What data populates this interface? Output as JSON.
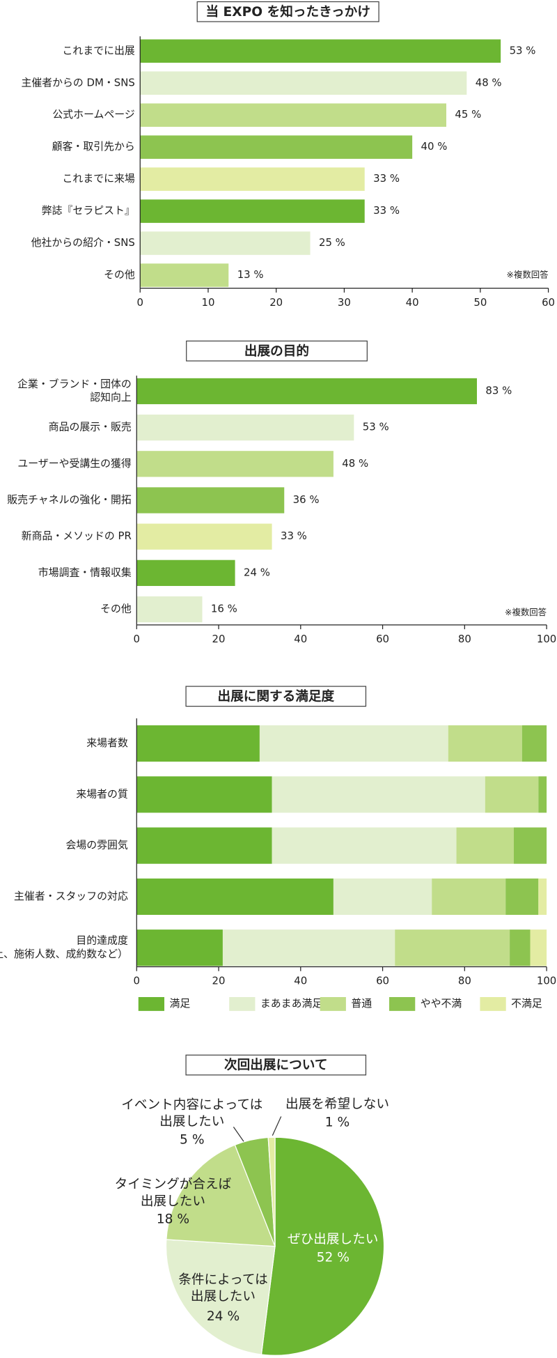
{
  "chart_data": [
    {
      "type": "bar",
      "orientation": "horizontal",
      "title": "当 EXPO を知ったきっかけ",
      "categories": [
        "これまでに出展",
        "主催者からの DM・SNS",
        "公式ホームページ",
        "顧客・取引先から",
        "これまでに来場",
        "弊誌『セラピスト』",
        "他社からの紹介・SNS",
        "その他"
      ],
      "values": [
        53,
        48,
        45,
        40,
        33,
        33,
        25,
        13
      ],
      "value_labels": [
        "53 %",
        "48 %",
        "45 %",
        "40 %",
        "33 %",
        "33 %",
        "25 %",
        "13 %"
      ],
      "colors": [
        "#6cb632",
        "#e2efcf",
        "#c1dd8a",
        "#8dc450",
        "#e3eca3",
        "#6cb632",
        "#e2efcf",
        "#c1dd8a"
      ],
      "note": "※複数回答",
      "xlim": [
        0,
        60
      ],
      "xticks": [
        0,
        10,
        20,
        30,
        40,
        50,
        60
      ]
    },
    {
      "type": "bar",
      "orientation": "horizontal",
      "title": "出展の目的",
      "categories": [
        "企業・ブランド・団体の\n認知向上",
        "商品の展示・販売",
        "ユーザーや受講生の獲得",
        "販売チャネルの強化・開拓",
        "新商品・メソッドの PR",
        "市場調査・情報収集",
        "その他"
      ],
      "values": [
        83,
        53,
        48,
        36,
        33,
        24,
        16
      ],
      "value_labels": [
        "83 %",
        "53 %",
        "48 %",
        "36 %",
        "33 %",
        "24 %",
        "16 %"
      ],
      "colors": [
        "#6cb632",
        "#e2efcf",
        "#c1dd8a",
        "#8dc450",
        "#e3eca3",
        "#6cb632",
        "#e2efcf"
      ],
      "note": "※複数回答",
      "xlim": [
        0,
        100
      ],
      "xticks": [
        0,
        20,
        40,
        60,
        80,
        100
      ]
    },
    {
      "type": "stacked_bar",
      "orientation": "horizontal",
      "title": "出展に関する満足度",
      "categories": [
        "来場者数",
        "来場者の質",
        "会場の雰囲気",
        "主催者・スタッフの対応",
        "目的達成度\n（売上、施術人数、成約数など）"
      ],
      "series": [
        {
          "name": "満足",
          "color": "#6cb632",
          "values": [
            30,
            33,
            33,
            48,
            21
          ]
        },
        {
          "name": "まあまあ満足",
          "color": "#e2efcf",
          "values": [
            46,
            52,
            45,
            24,
            42
          ]
        },
        {
          "name": "普通",
          "color": "#c1dd8a",
          "values": [
            18,
            13,
            14,
            18,
            28
          ]
        },
        {
          "name": "やや不満",
          "color": "#8dc450",
          "values": [
            6,
            2,
            8,
            8,
            5
          ]
        },
        {
          "name": "不満足",
          "color": "#e3eca3",
          "values": [
            0,
            0,
            0,
            2,
            4
          ]
        }
      ],
      "xlim": [
        0,
        100
      ],
      "xticks": [
        0,
        20,
        40,
        60,
        80,
        100
      ],
      "legend": "bottom"
    },
    {
      "type": "pie",
      "title": "次回出展について",
      "categories": [
        "ぜひ出展したい",
        "条件によっては\n出展したい",
        "タイミングが合えば\n出展したい",
        "イベント内容によっては\n出展したい",
        "出展を希望しない"
      ],
      "values": [
        52,
        24,
        18,
        5,
        1
      ],
      "value_labels": [
        "52 %",
        "24 %",
        "18 %",
        "5 %",
        "1 %"
      ],
      "colors": [
        "#6cb632",
        "#e2efcf",
        "#c1dd8a",
        "#8dc450",
        "#e3eca3"
      ]
    }
  ]
}
